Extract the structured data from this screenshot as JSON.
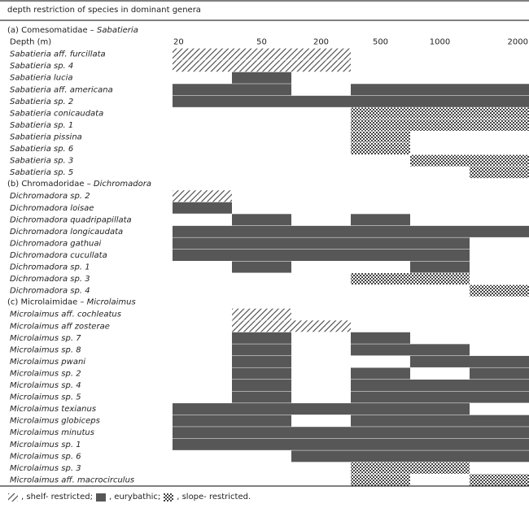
{
  "chart_data": {
    "type": "table",
    "title": "depth restriction of species in dominant genera",
    "depth_label": "Depth (m)",
    "depth_ticks": [
      "20",
      "50",
      "200",
      "500",
      "1000",
      "2000"
    ],
    "legend": [
      {
        "key": "shelf",
        "label": ", shelf- restricted;"
      },
      {
        "key": "eury",
        "label": ", eurybathic;"
      },
      {
        "key": "slope",
        "label": ", slope- restricted."
      }
    ],
    "colors": {
      "eury": "#575757",
      "line": "#000000",
      "hatch": "#444444",
      "text": "#222222"
    },
    "groups": [
      {
        "label_prefix": "(a) Comesomatidae – ",
        "label_genus": "Sabatieria",
        "species": [
          {
            "name": "Sabatieria aff. furcillata",
            "ranges": [
              {
                "from": 0,
                "to": 3,
                "type": "shelf"
              }
            ]
          },
          {
            "name": "Sabatieria sp. 4",
            "ranges": [
              {
                "from": 0,
                "to": 3,
                "type": "shelf"
              }
            ]
          },
          {
            "name": "Sabatieria lucia",
            "ranges": [
              {
                "from": 1,
                "to": 2,
                "type": "eury"
              }
            ]
          },
          {
            "name": "Sabatieria aff. americana",
            "ranges": [
              {
                "from": 0,
                "to": 2,
                "type": "eury"
              },
              {
                "from": 3,
                "to": 6,
                "type": "eury"
              }
            ]
          },
          {
            "name": "Sabatieria sp. 2",
            "ranges": [
              {
                "from": 0,
                "to": 6,
                "type": "eury"
              }
            ]
          },
          {
            "name": "Sabatieria conicaudata",
            "ranges": [
              {
                "from": 3,
                "to": 6,
                "type": "slope"
              }
            ]
          },
          {
            "name": "Sabatieria sp. 1",
            "ranges": [
              {
                "from": 3,
                "to": 6,
                "type": "slope"
              }
            ]
          },
          {
            "name": "Sabatieria pissina",
            "ranges": [
              {
                "from": 3,
                "to": 4,
                "type": "slope"
              }
            ]
          },
          {
            "name": "Sabatieria sp. 6",
            "ranges": [
              {
                "from": 3,
                "to": 4,
                "type": "slope"
              }
            ]
          },
          {
            "name": "Sabatieria sp. 3",
            "ranges": [
              {
                "from": 4,
                "to": 6,
                "type": "slope"
              }
            ]
          },
          {
            "name": "Sabatieria sp. 5",
            "ranges": [
              {
                "from": 5,
                "to": 6,
                "type": "slope"
              }
            ]
          }
        ]
      },
      {
        "label_prefix": "(b) Chromadoridae – ",
        "label_genus": "Dichromadora",
        "species": [
          {
            "name": "Dichromadora sp. 2",
            "ranges": [
              {
                "from": 0,
                "to": 1,
                "type": "shelf"
              }
            ]
          },
          {
            "name": "Dichromadora loisae",
            "ranges": [
              {
                "from": 0,
                "to": 1,
                "type": "eury"
              }
            ]
          },
          {
            "name": "Dichromadora quadripapillata",
            "ranges": [
              {
                "from": 1,
                "to": 2,
                "type": "eury"
              },
              {
                "from": 3,
                "to": 4,
                "type": "eury"
              }
            ]
          },
          {
            "name": "Dichromadora longicaudata",
            "ranges": [
              {
                "from": 0,
                "to": 6,
                "type": "eury"
              }
            ]
          },
          {
            "name": "Dichromadora gathuai",
            "ranges": [
              {
                "from": 0,
                "to": 5,
                "type": "eury"
              }
            ]
          },
          {
            "name": "Dichromadora cucullata",
            "ranges": [
              {
                "from": 0,
                "to": 5,
                "type": "eury"
              }
            ]
          },
          {
            "name": "Dichromadora sp. 1",
            "ranges": [
              {
                "from": 1,
                "to": 2,
                "type": "eury"
              },
              {
                "from": 4,
                "to": 5,
                "type": "eury"
              }
            ]
          },
          {
            "name": "Dichromadora sp. 3",
            "ranges": [
              {
                "from": 3,
                "to": 5,
                "type": "slope"
              }
            ]
          },
          {
            "name": "Dichromadora sp. 4",
            "ranges": [
              {
                "from": 5,
                "to": 6,
                "type": "slope"
              }
            ]
          }
        ]
      },
      {
        "label_prefix": "(c) Microlaimidae – ",
        "label_genus": "Microlaimus",
        "species": [
          {
            "name": "Microlaimus aff. cochleatus",
            "ranges": [
              {
                "from": 1,
                "to": 2,
                "type": "shelf"
              }
            ]
          },
          {
            "name": "Microlaimus aff zosterae",
            "ranges": [
              {
                "from": 1,
                "to": 3,
                "type": "shelf"
              }
            ]
          },
          {
            "name": "Microlaimus sp. 7",
            "ranges": [
              {
                "from": 1,
                "to": 2,
                "type": "eury"
              },
              {
                "from": 3,
                "to": 4,
                "type": "eury"
              }
            ]
          },
          {
            "name": "Microlaimus sp. 8",
            "ranges": [
              {
                "from": 1,
                "to": 2,
                "type": "eury"
              },
              {
                "from": 3,
                "to": 5,
                "type": "eury"
              }
            ]
          },
          {
            "name": "Microlaimus pwani",
            "ranges": [
              {
                "from": 1,
                "to": 2,
                "type": "eury"
              },
              {
                "from": 4,
                "to": 6,
                "type": "eury"
              }
            ]
          },
          {
            "name": "Microlaimus sp. 2",
            "ranges": [
              {
                "from": 1,
                "to": 2,
                "type": "eury"
              },
              {
                "from": 3,
                "to": 4,
                "type": "eury"
              },
              {
                "from": 5,
                "to": 6,
                "type": "eury"
              }
            ]
          },
          {
            "name": "Microlaimus sp. 4",
            "ranges": [
              {
                "from": 1,
                "to": 2,
                "type": "eury"
              },
              {
                "from": 3,
                "to": 6,
                "type": "eury"
              }
            ]
          },
          {
            "name": "Microlaimus sp. 5",
            "ranges": [
              {
                "from": 1,
                "to": 2,
                "type": "eury"
              },
              {
                "from": 3,
                "to": 6,
                "type": "eury"
              }
            ]
          },
          {
            "name": "Microlaimus texianus",
            "ranges": [
              {
                "from": 0,
                "to": 5,
                "type": "eury"
              }
            ]
          },
          {
            "name": "Microlaimus globiceps",
            "ranges": [
              {
                "from": 0,
                "to": 2,
                "type": "eury"
              },
              {
                "from": 3,
                "to": 6,
                "type": "eury"
              }
            ]
          },
          {
            "name": "Microlaimus minutus",
            "ranges": [
              {
                "from": 0,
                "to": 6,
                "type": "eury"
              }
            ]
          },
          {
            "name": "Microlaimus sp. 1",
            "ranges": [
              {
                "from": 0,
                "to": 6,
                "type": "eury"
              }
            ]
          },
          {
            "name": "Microlaimus sp. 6",
            "ranges": [
              {
                "from": 2,
                "to": 6,
                "type": "eury"
              }
            ]
          },
          {
            "name": "Microlaimus sp. 3",
            "ranges": [
              {
                "from": 3,
                "to": 5,
                "type": "slope"
              }
            ]
          },
          {
            "name": "Microlaimus aff. macrocirculus",
            "ranges": [
              {
                "from": 3,
                "to": 4,
                "type": "slope"
              },
              {
                "from": 5,
                "to": 6,
                "type": "slope"
              }
            ]
          }
        ]
      }
    ]
  }
}
